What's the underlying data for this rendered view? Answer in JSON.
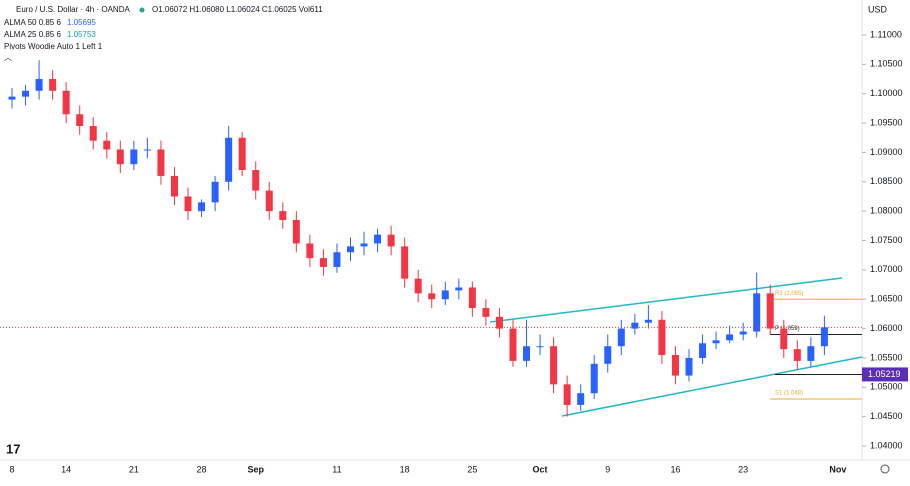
{
  "chart_data": {
    "type": "candlestick",
    "title": "Euro / U.S. Dollar · 4h · OANDA",
    "ohlc_text": "O1.06072 H1.06080 L1.06024 C1.06025 Vol611",
    "indicators": [
      {
        "name": "ALMA 50 0.85 6",
        "value": "1.05695",
        "color": "#2962ff"
      },
      {
        "name": "ALMA 25 0.85 6",
        "value": "1.05753",
        "color": "#0aa5b5"
      },
      {
        "name": "Pivots Woodie Auto 1 Left 1",
        "value": null,
        "color": null
      }
    ],
    "currency": "USD",
    "categories": [
      "8",
      null,
      null,
      null,
      "14",
      null,
      null,
      null,
      null,
      "21",
      null,
      null,
      null,
      null,
      "28",
      null,
      null,
      null,
      "Sep",
      null,
      null,
      null,
      null,
      null,
      "11",
      null,
      null,
      null,
      null,
      "18",
      null,
      null,
      null,
      null,
      "25",
      null,
      null,
      null,
      null,
      "Oct",
      null,
      null,
      null,
      null,
      "9",
      null,
      null,
      null,
      null,
      "16",
      null,
      null,
      null,
      null,
      "23",
      null,
      null,
      null,
      null,
      null,
      null,
      "Nov"
    ],
    "open": [
      1.099,
      1.0995,
      1.1005,
      1.1025,
      1.1005,
      1.0965,
      1.0945,
      1.092,
      1.0905,
      1.088,
      1.0905,
      1.0905,
      1.086,
      1.0825,
      1.08,
      1.0815,
      1.085,
      1.0925,
      1.087,
      1.0835,
      1.08,
      1.0785,
      1.0745,
      1.072,
      1.0705,
      1.073,
      1.074,
      1.0745,
      1.076,
      1.074,
      1.0685,
      1.066,
      1.065,
      1.0665,
      1.067,
      1.0635,
      1.062,
      1.06,
      1.0545,
      1.057,
      1.057,
      1.0505,
      1.047,
      1.049,
      1.054,
      1.057,
      1.06,
      1.061,
      1.0615,
      1.0555,
      1.052,
      1.055,
      1.0575,
      1.058,
      1.059,
      1.0595,
      1.066,
      1.06,
      1.0565,
      1.0545,
      1.057,
      null
    ],
    "high": [
      1.101,
      1.1015,
      1.1057,
      1.104,
      1.102,
      1.098,
      1.096,
      1.0935,
      1.092,
      1.092,
      1.0925,
      1.092,
      1.0875,
      1.084,
      1.082,
      1.086,
      1.0945,
      1.0935,
      1.0885,
      1.085,
      1.0815,
      1.08,
      1.076,
      1.0735,
      1.0745,
      1.0755,
      1.0765,
      1.077,
      1.0775,
      1.0755,
      1.07,
      1.0675,
      1.068,
      1.0685,
      1.068,
      1.065,
      1.0635,
      1.0615,
      1.0615,
      1.059,
      1.0585,
      1.052,
      1.0505,
      1.0555,
      1.059,
      1.0615,
      1.0625,
      1.064,
      1.063,
      1.057,
      1.0565,
      1.059,
      1.0595,
      1.0605,
      1.061,
      1.0695,
      1.0675,
      1.0615,
      1.058,
      1.0585,
      1.0622,
      null
    ],
    "low": [
      1.0975,
      1.098,
      1.099,
      1.099,
      1.095,
      1.093,
      1.0905,
      1.089,
      1.0865,
      1.087,
      1.089,
      1.0845,
      1.081,
      1.0785,
      1.079,
      1.08,
      1.0835,
      1.086,
      1.082,
      1.0785,
      1.077,
      1.073,
      1.0705,
      1.069,
      1.0695,
      1.0715,
      1.0725,
      1.073,
      1.0725,
      1.067,
      1.0645,
      1.0635,
      1.064,
      1.065,
      1.062,
      1.0605,
      1.0585,
      1.0535,
      1.0535,
      1.0555,
      1.049,
      1.045,
      1.046,
      1.048,
      1.0525,
      1.0555,
      1.059,
      1.06,
      1.054,
      1.0505,
      1.051,
      1.054,
      1.0565,
      1.0575,
      1.058,
      1.0585,
      1.059,
      1.055,
      1.053,
      1.0535,
      1.0555,
      null
    ],
    "close": [
      1.0995,
      1.1005,
      1.1025,
      1.1005,
      1.0965,
      1.0945,
      1.092,
      1.0905,
      1.088,
      1.0905,
      1.0905,
      1.086,
      1.0825,
      1.08,
      1.0815,
      1.085,
      1.0925,
      1.087,
      1.0835,
      1.08,
      1.0785,
      1.0745,
      1.072,
      1.0705,
      1.073,
      1.074,
      1.0745,
      1.076,
      1.074,
      1.0685,
      1.066,
      1.065,
      1.0665,
      1.067,
      1.0635,
      1.062,
      1.06,
      1.0545,
      1.057,
      1.057,
      1.0505,
      1.047,
      1.049,
      1.054,
      1.057,
      1.06,
      1.061,
      1.0615,
      1.0555,
      1.052,
      1.055,
      1.0575,
      1.058,
      1.059,
      1.0595,
      1.066,
      1.06,
      1.0565,
      1.0545,
      1.057,
      1.0602,
      null
    ],
    "up_color": "#2962ff",
    "down_color": "#f23645",
    "ylim": [
      1.03762,
      1.11596
    ],
    "yticks": [
      {
        "value": 1.04,
        "label": "1.04000"
      },
      {
        "value": 1.045,
        "label": "1.04500"
      },
      {
        "value": 1.05,
        "label": "1.05000"
      },
      {
        "value": 1.055,
        "label": "1.05500"
      },
      {
        "value": 1.06,
        "label": "1.06000"
      },
      {
        "value": 1.065,
        "label": "1.06500"
      },
      {
        "value": 1.07,
        "label": "1.07000"
      },
      {
        "value": 1.075,
        "label": "1.07500"
      },
      {
        "value": 1.08,
        "label": "1.08000"
      },
      {
        "value": 1.085,
        "label": "1.08500"
      },
      {
        "value": 1.09,
        "label": "1.09000"
      },
      {
        "value": 1.095,
        "label": "1.09500"
      },
      {
        "value": 1.1,
        "label": "1.10000"
      },
      {
        "value": 1.105,
        "label": "1.10500"
      },
      {
        "value": 1.11,
        "label": "1.11000"
      }
    ],
    "pivots": [
      {
        "label": "R1 (1.065)",
        "value": 1.065,
        "color": "#f0a830"
      },
      {
        "label": "P (1.059)",
        "value": 1.059,
        "color": "#222222"
      },
      {
        "label": "S1 (1.048)",
        "value": 1.048,
        "color": "#f0a830"
      }
    ],
    "price_label": {
      "value": 1.05219,
      "color": "#5b2fb5"
    },
    "logo": "17"
  }
}
